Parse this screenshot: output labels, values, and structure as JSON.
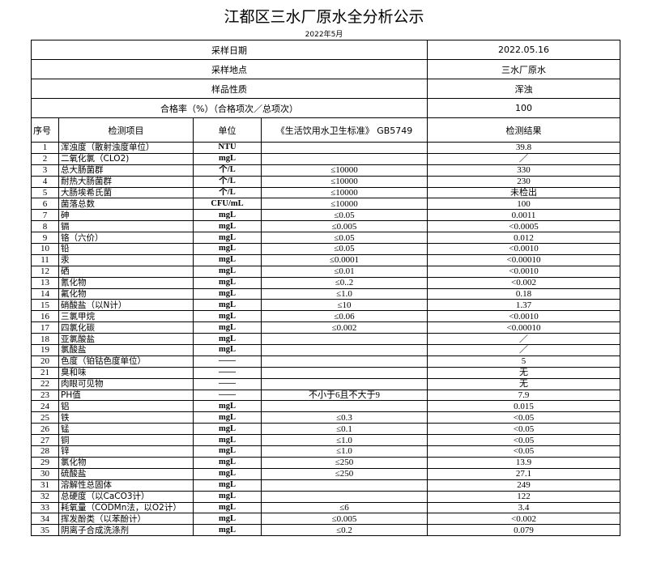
{
  "title": "江都区三水厂原水全分析公示",
  "subtitle": "2022年5月",
  "summary": [
    {
      "label": "采样日期",
      "value": "2022.05.16"
    },
    {
      "label": "采样地点",
      "value": "三水厂原水"
    },
    {
      "label": "样品性质",
      "value": "浑浊"
    },
    {
      "label": "合格率（%）（合格项次／总项次）",
      "value": "100"
    }
  ],
  "headers": [
    "序号",
    "检测项目",
    "单位",
    "《生活饮用水卫生标准》 GB5749",
    "检测结果"
  ],
  "rows": [
    [
      "1",
      "浑浊度（散射浊度单位）",
      "NTU",
      "",
      "39.8"
    ],
    [
      "2",
      "二氧化氯（CLO2)",
      "mgL",
      "",
      "／"
    ],
    [
      "3",
      "总大肠菌群",
      "个/L",
      "≤10000",
      "330"
    ],
    [
      "4",
      "耐热大肠菌群",
      "个/L",
      "≤10000",
      "230"
    ],
    [
      "5",
      "大肠埃希氏菌",
      "个/L",
      "≤10000",
      "未检出"
    ],
    [
      "6",
      "菌落总数",
      "CFU/mL",
      "≤10000",
      "100"
    ],
    [
      "7",
      "砷",
      "mgL",
      "≤0.05",
      "0.0011"
    ],
    [
      "8",
      "镉",
      "mgL",
      "≤0.005",
      "<0.0005"
    ],
    [
      "9",
      "铬（六价）",
      "mgL",
      "≤0.05",
      "0.012"
    ],
    [
      "10",
      "铅",
      "mgL",
      "≤0.05",
      "<0.0010"
    ],
    [
      "11",
      "汞",
      "mgL",
      "≤0.0001",
      "<0.00010"
    ],
    [
      "12",
      "硒",
      "mgL",
      "≤0.01",
      "<0.0010"
    ],
    [
      "13",
      "氰化物",
      "mgL",
      "≤0..2",
      "<0.002"
    ],
    [
      "14",
      "氟化物",
      "mgL",
      "≤1.0",
      "0.18"
    ],
    [
      "15",
      "硝酸盐（以N计）",
      "mgL",
      "≤10",
      "1.37"
    ],
    [
      "16",
      "三氯甲烷",
      "mgL",
      "≤0.06",
      "<0.0010"
    ],
    [
      "17",
      "四氯化碳",
      "mgL",
      "≤0.002",
      "<0.00010"
    ],
    [
      "18",
      "亚氯酸盐",
      "mgL",
      "",
      "／"
    ],
    [
      "19",
      "氯酸盐",
      "mgL",
      "",
      "／"
    ],
    [
      "20",
      "色度（铂钴色度单位）",
      "——",
      "",
      "5"
    ],
    [
      "21",
      "臭和味",
      "——",
      "",
      "无"
    ],
    [
      "22",
      "肉眼可见物",
      "——",
      "",
      "无"
    ],
    [
      "23",
      "PH值",
      "——",
      "不小于6且不大于9",
      "7.9"
    ],
    [
      "24",
      "铝",
      "mgL",
      "",
      "0.015"
    ],
    [
      "25",
      "铁",
      "mgL",
      "≤0.3",
      "<0.05"
    ],
    [
      "26",
      "锰",
      "mgL",
      "≤0.1",
      "<0.05"
    ],
    [
      "27",
      "铜",
      "mgL",
      "≤1.0",
      "<0.05"
    ],
    [
      "28",
      "锌",
      "mgL",
      "≤1.0",
      "<0.05"
    ],
    [
      "29",
      "氯化物",
      "mgL",
      "≤250",
      "13.9"
    ],
    [
      "30",
      "硫酸盐",
      "mgL",
      "≤250",
      "27.1"
    ],
    [
      "31",
      "溶解性总固体",
      "mgL",
      "",
      "249"
    ],
    [
      "32",
      "总硬度（以CaCO3计）",
      "mgL",
      "",
      "122"
    ],
    [
      "33",
      "耗氧量（CODMn法，以O2计）",
      "mgL",
      "≤6",
      "3.4"
    ],
    [
      "34",
      "挥发酚类（以苯酚计）",
      "mgL",
      "≤0.005",
      "<0.002"
    ],
    [
      "35",
      "阴离子合成洗涤剂",
      "mgL",
      "≤0.2",
      "0.079"
    ]
  ]
}
